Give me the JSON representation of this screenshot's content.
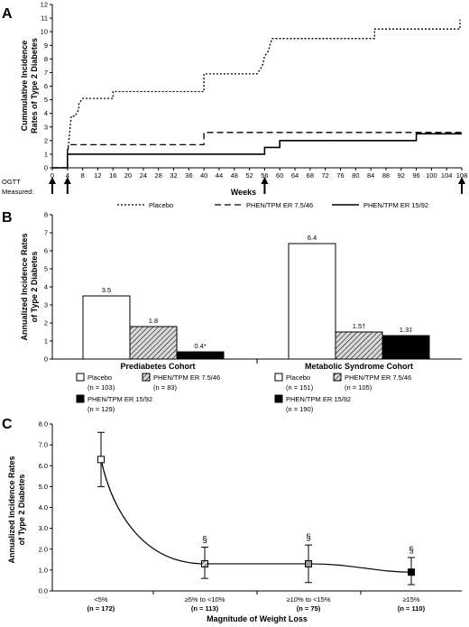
{
  "panels": {
    "a": "A",
    "b": "B",
    "c": "C"
  },
  "colors": {
    "line": "#000000",
    "hatch_bg": "#d9d9d9"
  },
  "chart_data": [
    {
      "type": "line",
      "ylabel": [
        "Cummulative Incidence",
        "Rates of Type 2 Diabetes"
      ],
      "xlabel": "Weeks",
      "ogtt_label": [
        "OGTT",
        "Measured:"
      ],
      "ogtt_weeks": [
        0,
        4,
        56,
        108
      ],
      "ylim": [
        0,
        12
      ],
      "xlim": [
        0,
        108
      ],
      "xticks": [
        0,
        4,
        8,
        12,
        16,
        20,
        24,
        28,
        32,
        36,
        40,
        44,
        48,
        52,
        56,
        60,
        64,
        68,
        72,
        76,
        80,
        84,
        88,
        92,
        96,
        100,
        104,
        108
      ],
      "yticks": [
        0,
        1,
        2,
        3,
        4,
        5,
        6,
        7,
        8,
        9,
        10,
        11,
        12
      ],
      "legend": [
        "Placebo",
        "PHEN/TPM ER 7.5/46",
        "PHEN/TPM ER 15/92"
      ],
      "series": [
        {
          "name": "Placebo",
          "style": "dotted",
          "x": [
            0,
            4,
            4,
            4.3,
            5,
            6,
            7,
            7,
            8,
            16,
            16,
            40,
            40,
            54,
            55,
            55.5,
            56,
            57,
            57.5,
            58,
            85,
            85,
            107.5,
            107.5
          ],
          "y": [
            0,
            0,
            1,
            1.8,
            3.8,
            3.8,
            4.3,
            4.7,
            5.1,
            5.1,
            5.6,
            5.6,
            6.9,
            6.9,
            7.3,
            7.6,
            8.2,
            8.6,
            9.1,
            9.5,
            9.5,
            10.2,
            10.2,
            10.9
          ]
        },
        {
          "name": "PHEN/TPM ER 7.5/46",
          "style": "dashed",
          "x": [
            0,
            4,
            4,
            4.5,
            40,
            40,
            108
          ],
          "y": [
            0,
            0,
            1.3,
            1.7,
            1.7,
            2.6,
            2.6
          ]
        },
        {
          "name": "PHEN/TPM ER 15/92",
          "style": "solid",
          "x": [
            0,
            4,
            4,
            56,
            56,
            60,
            60,
            96,
            96,
            108
          ],
          "y": [
            0,
            0,
            1,
            1,
            1.5,
            1.5,
            2,
            2,
            2.5,
            2.5
          ]
        }
      ]
    },
    {
      "type": "bar",
      "ylabel": [
        "Annualized Incidence Rates",
        "of Type 2 Diabetes"
      ],
      "ylim": [
        0,
        8
      ],
      "yticks": [
        0,
        1,
        2,
        3,
        4,
        5,
        6,
        7,
        8
      ],
      "groups": [
        {
          "name": "Prediabetes Cohort",
          "bars": [
            {
              "series": "Placebo",
              "value": 3.5,
              "label": "3.5",
              "fill": "white"
            },
            {
              "series": "PHEN/TPM ER 7.5/46",
              "value": 1.8,
              "label": "1.8",
              "fill": "hatch"
            },
            {
              "series": "PHEN/TPM ER 15/92",
              "value": 0.4,
              "label": "0.4*",
              "fill": "black"
            }
          ],
          "legend": [
            {
              "name": "Placebo",
              "n": "(n = 103)",
              "fill": "white"
            },
            {
              "name": "PHEN/TPM ER 7.5/46",
              "n": "(n = 83)",
              "fill": "hatch"
            },
            {
              "name": "PHEN/TPM ER 15/92",
              "n": "(n = 129)",
              "fill": "black"
            }
          ]
        },
        {
          "name": "Metabolic Syndrome Cohort",
          "bars": [
            {
              "series": "Placebo",
              "value": 6.4,
              "label": "6.4",
              "fill": "white"
            },
            {
              "series": "PHEN/TPM ER 7.5/46",
              "value": 1.5,
              "label": "1.5†",
              "fill": "hatch"
            },
            {
              "series": "PHEN/TPM ER 15/92",
              "value": 1.3,
              "label": "1.3‡",
              "fill": "black"
            }
          ],
          "legend": [
            {
              "name": "Placebo",
              "n": "(n = 151)",
              "fill": "white"
            },
            {
              "name": "PHEN/TPM ER 7.5/46",
              "n": "(n = 105)",
              "fill": "hatch"
            },
            {
              "name": "PHEN/TPM ER 15/92",
              "n": "(n = 190)",
              "fill": "black"
            }
          ]
        }
      ]
    },
    {
      "type": "line",
      "ylabel": [
        "Annualized Incidence Rates",
        "of Type 2 Diabetes"
      ],
      "xlabel": "Magnitude of Weight Loss",
      "ylim": [
        0,
        8
      ],
      "yticks": [
        "0.0",
        "1.0",
        "2.0",
        "3.0",
        "4.0",
        "5.0",
        "6.0",
        "7.0",
        "8.0"
      ],
      "categories": [
        {
          "label": "<5%",
          "n": "(n = 172)"
        },
        {
          "label": "≥5% to <10%",
          "n": "(n = 113)"
        },
        {
          "label": "≥10% to <15%",
          "n": "(n = 75)"
        },
        {
          "label": "≥15%",
          "n": "(n = 110)"
        }
      ],
      "values": [
        6.3,
        1.3,
        1.3,
        0.9
      ],
      "err_low": [
        5.0,
        0.6,
        0.4,
        0.3
      ],
      "err_high": [
        7.6,
        2.1,
        2.2,
        1.6
      ],
      "markers": [
        "white",
        "hatch",
        "gray",
        "black"
      ],
      "annotations": [
        "",
        "§",
        "§",
        "§"
      ]
    }
  ]
}
